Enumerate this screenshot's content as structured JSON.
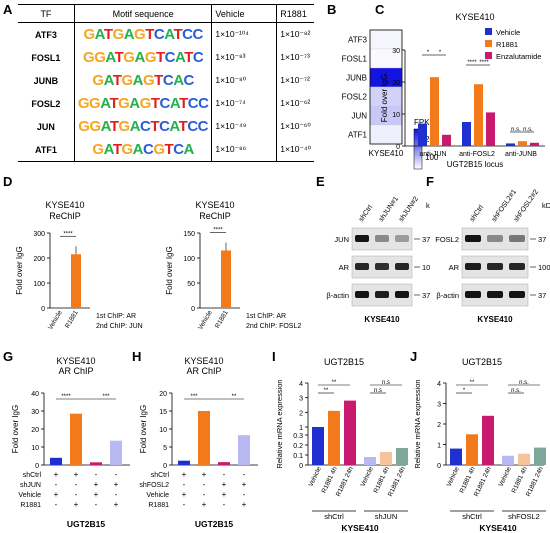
{
  "panels": {
    "A": "A",
    "B": "B",
    "C": "C",
    "D": "D",
    "E": "E",
    "F": "F",
    "G": "G",
    "H": "H",
    "I": "I",
    "J": "J"
  },
  "tableA": {
    "headers": [
      "TF",
      "Motif sequence",
      "Vehicle",
      "R1881"
    ],
    "rows": [
      {
        "tf": "ATF3",
        "motif": "GATGAGTCATCC",
        "vehicle": "1×10⁻¹⁰⁴",
        "r1881": "1×10⁻⁸²"
      },
      {
        "tf": "FOSL1",
        "motif": "GGATGAGTCATC",
        "vehicle": "1×10⁻⁸³",
        "r1881": "1×10⁻⁷³"
      },
      {
        "tf": "JUNB",
        "motif": "GATGAGTCAC",
        "vehicle": "1×10⁻⁸⁰",
        "r1881": "1×10⁻⁷²"
      },
      {
        "tf": "FOSL2",
        "motif": "GGATGAGTCATCC",
        "vehicle": "1×10⁻⁷⁴",
        "r1881": "1×10⁻⁶²"
      },
      {
        "tf": "JUN",
        "motif": "GGATGACTCATCC",
        "vehicle": "1×10⁻⁴⁹",
        "r1881": "1×10⁻⁶⁰"
      },
      {
        "tf": "ATF1",
        "motif": "GATGACGTCA",
        "vehicle": "1×10⁻⁸⁶",
        "r1881": "1×10⁻⁴⁰"
      }
    ]
  },
  "heatmapB": {
    "rows": [
      "ATF3",
      "FOSL1",
      "JUNB",
      "FOSL2",
      "JUN",
      "ATF1"
    ],
    "values": [
      10,
      5,
      230,
      45,
      55,
      15
    ],
    "max": 230,
    "legend_title": "FPKM",
    "legend_ticks": [
      "200",
      "100"
    ],
    "xlabel": "KYSE410",
    "low_color": "#ffffff",
    "high_color": "#1010e0"
  },
  "chart_data": [
    {
      "panel": "C",
      "type": "bar",
      "title": "KYSE410",
      "ylabel": "Fold over IgG",
      "xlabel": "UGT2B15 locus",
      "ylim": [
        0,
        30
      ],
      "yticks": [
        "0",
        "10",
        "20",
        "30"
      ],
      "categories": [
        "anti-JUN",
        "anti-FOSL2",
        "anti-JUNB"
      ],
      "series": [
        {
          "name": "Vehicle",
          "color": "#1f2fd0",
          "values": [
            7,
            7.5,
            0.8
          ]
        },
        {
          "name": "R1881",
          "color": "#f27a1a",
          "values": [
            21.5,
            19.3,
            1.5
          ]
        },
        {
          "name": "Enzalutamide",
          "color": "#c81a6e",
          "values": [
            3.5,
            10.5,
            1
          ]
        }
      ],
      "sig": [
        "*",
        "*",
        "****",
        "****",
        "n.s.",
        "n.s."
      ]
    },
    {
      "panel": "D1",
      "type": "bar",
      "title": "KYSE410",
      "subtitle": "ReChIP",
      "ylabel": "Fold over IgG",
      "ylim": [
        0,
        300
      ],
      "yticks": [
        "0",
        "100",
        "200",
        "300"
      ],
      "categories": [
        "Vehicle",
        "R1881"
      ],
      "values": [
        0,
        215
      ],
      "color": "#f27a1a",
      "sig": "****",
      "note1": "1st ChIP: AR",
      "note2": "2nd ChIP: JUN"
    },
    {
      "panel": "D2",
      "type": "bar",
      "title": "KYSE410",
      "subtitle": "ReChIP",
      "ylabel": "Fold over IgG",
      "ylim": [
        0,
        150
      ],
      "yticks": [
        "0",
        "50",
        "100",
        "150"
      ],
      "categories": [
        "Vehicle",
        "R1881"
      ],
      "values": [
        0,
        115
      ],
      "color": "#f27a1a",
      "sig": "****",
      "note1": "1st ChIP: AR",
      "note2": "2nd ChIP: FOSL2"
    },
    {
      "panel": "G",
      "type": "bar",
      "title": "KYSE410",
      "subtitle": "AR ChIP",
      "ylabel": "Fold over IgG",
      "xlabel": "UGT2B15",
      "ylim": [
        0,
        40
      ],
      "yticks": [
        "0",
        "10",
        "20",
        "30",
        "40"
      ],
      "values": [
        4,
        28.5,
        1.5,
        13.5
      ],
      "colors": [
        "#1f2fd0",
        "#f27a1a",
        "#c81a6e",
        "#b8b8f2"
      ],
      "sig": [
        "****",
        "***"
      ],
      "conditions": [
        {
          "label": "shCtrl",
          "marks": [
            "+",
            "+",
            "-",
            "-"
          ]
        },
        {
          "label": "shJUN",
          "marks": [
            "-",
            "-",
            "+",
            "+"
          ]
        },
        {
          "label": "Vehicle",
          "marks": [
            "+",
            "-",
            "+",
            "-"
          ]
        },
        {
          "label": "R1881",
          "marks": [
            "-",
            "+",
            "-",
            "+"
          ]
        }
      ]
    },
    {
      "panel": "H",
      "type": "bar",
      "title": "KYSE410",
      "subtitle": "AR ChIP",
      "ylabel": "Fold over IgG",
      "xlabel": "UGT2B15",
      "ylim": [
        0,
        20
      ],
      "yticks": [
        "0",
        "5",
        "10",
        "15",
        "20"
      ],
      "values": [
        1.2,
        15,
        0.8,
        8.3
      ],
      "colors": [
        "#1f2fd0",
        "#f27a1a",
        "#c81a6e",
        "#b8b8f2"
      ],
      "sig": [
        "***",
        "**"
      ],
      "conditions": [
        {
          "label": "shCtrl",
          "marks": [
            "+",
            "+",
            "-",
            "-"
          ]
        },
        {
          "label": "shFOSL2",
          "marks": [
            "-",
            "-",
            "+",
            "+"
          ]
        },
        {
          "label": "Vehicle",
          "marks": [
            "+",
            "-",
            "+",
            "-"
          ]
        },
        {
          "label": "R1881",
          "marks": [
            "-",
            "+",
            "-",
            "+"
          ]
        }
      ]
    },
    {
      "panel": "I",
      "type": "bar",
      "title": "UGT2B15",
      "ylabel": "Relative mRNA expression",
      "xlabel": "KYSE410",
      "yticks": [
        "0",
        "0.1",
        "0.2",
        "0.3",
        "1",
        "2",
        "3",
        "4"
      ],
      "categories": [
        "Vehicle",
        "R1881 4h",
        "R1881 24h",
        "Vehicle",
        "R1881 4h",
        "R1881 24h"
      ],
      "groups": [
        "shCtrl",
        "shJUN"
      ],
      "values": [
        1,
        2.1,
        2.8,
        0.08,
        0.13,
        0.17
      ],
      "colors": [
        "#1f2fd0",
        "#f27a1a",
        "#c81a6e",
        "#b8b8f2",
        "#f5c49a",
        "#7fa69a"
      ],
      "sig": [
        "**",
        "**",
        "n.s",
        "n.s"
      ]
    },
    {
      "panel": "J",
      "type": "bar",
      "title": "UGT2B15",
      "ylabel": "Relative mRNA expression",
      "xlabel": "KYSE410",
      "ylim": [
        0,
        4
      ],
      "yticks": [
        "0",
        "1",
        "2",
        "3",
        "4"
      ],
      "categories": [
        "Vehicle",
        "R1881 4h",
        "R1881 24h",
        "Vehicle",
        "R1881 4h",
        "R1881 24h"
      ],
      "groups": [
        "shCtrl",
        "shFOSL2"
      ],
      "values": [
        0.8,
        1.5,
        2.4,
        0.45,
        0.55,
        0.85
      ],
      "colors": [
        "#1f2fd0",
        "#f27a1a",
        "#c81a6e",
        "#b8b8f2",
        "#f5c49a",
        "#7fa69a"
      ],
      "sig": [
        "*",
        "**",
        "n.s.",
        "n.s."
      ]
    }
  ],
  "blotE": {
    "lanes": [
      "shCtrl",
      "shJUN#1",
      "shJUN#2"
    ],
    "rows": [
      "JUN",
      "AR",
      "β-actin"
    ],
    "markers": [
      "37",
      "100",
      "37"
    ],
    "kda": "kDa",
    "xlabel": "KYSE410"
  },
  "blotF": {
    "lanes": [
      "shCtrl",
      "shFOSL2#1",
      "shFOSL2#2"
    ],
    "rows": [
      "FOSL2",
      "AR",
      "β-actin"
    ],
    "markers": [
      "37",
      "100",
      "37"
    ],
    "kda": "kDa",
    "xlabel": "KYSE410"
  }
}
